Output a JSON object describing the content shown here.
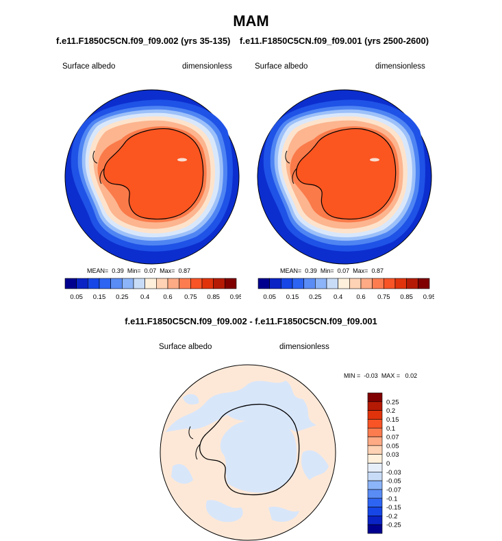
{
  "page": {
    "title": "MAM",
    "left_run": "f.e11.F1850C5CN.f09_f09.002 (yrs 35-135)",
    "right_run": "f.e11.F1850C5CN.f09_f09.001 (yrs 2500-2600)",
    "diff_title": "f.e11.F1850C5CN.f09_f09.002 - f.e11.F1850C5CN.f09_f09.001"
  },
  "panels": [
    {
      "variable": "Surface albedo",
      "units": "dimensionless",
      "stats": {
        "mean_label": "MEAN=",
        "mean": "0.39",
        "min_label": "Min=",
        "min": "0.07",
        "max_label": "Max=",
        "max": "0.87"
      }
    },
    {
      "variable": "Surface albedo",
      "units": "dimensionless",
      "stats": {
        "mean_label": "MEAN=",
        "mean": "0.39",
        "min_label": "Min=",
        "min": "0.07",
        "max_label": "Max=",
        "max": "0.87"
      }
    }
  ],
  "diff_panel": {
    "variable": "Surface albedo",
    "units": "dimensionless",
    "minmax": {
      "min_label": "MIN =",
      "min": "-0.03",
      "max_label": "MAX =",
      "max": "0.02"
    }
  },
  "colorbar_main": {
    "labels": [
      "0.05",
      "0.15",
      "0.25",
      "0.4",
      "0.6",
      "0.75",
      "0.85",
      "0.95"
    ],
    "colors": [
      "#00008f",
      "#0a23c4",
      "#1646e6",
      "#2e64f2",
      "#5a8cf5",
      "#8cb4f8",
      "#c8dcf8",
      "#fff0dc",
      "#fed2b4",
      "#fdaa85",
      "#fc7c50",
      "#f85426",
      "#e0330c",
      "#b51a04",
      "#800000"
    ]
  },
  "colorbar_diff": {
    "labels": [
      "0.25",
      "0.2",
      "0.15",
      "0.1",
      "0.07",
      "0.05",
      "0.03",
      "0",
      "-0.03",
      "-0.05",
      "-0.07",
      "-0.1",
      "-0.15",
      "-0.2",
      "-0.25"
    ],
    "colors": [
      "#800000",
      "#b51a04",
      "#e0330c",
      "#f85426",
      "#fc7c50",
      "#fdaa85",
      "#fed2b4",
      "#fff0dc",
      "#e6eefa",
      "#c8dcf8",
      "#8cb4f8",
      "#5a8cf5",
      "#2e64f2",
      "#1646e6",
      "#0a23c4",
      "#00008f"
    ]
  },
  "map_colors": {
    "ocean": "#0c2ecf",
    "ring1": "#1f52e6",
    "ring2": "#4f85f3",
    "ring3": "#9cc0f9",
    "ring4": "#d9e7fb",
    "coast": "#fde3cc",
    "shelf": "#fcb58f",
    "land1": "#fa7a4a",
    "land": "#fb5520",
    "peak": "#f9ddd0",
    "diff_pos": "#fde8d7",
    "diff_neg": "#d8e6fa"
  }
}
